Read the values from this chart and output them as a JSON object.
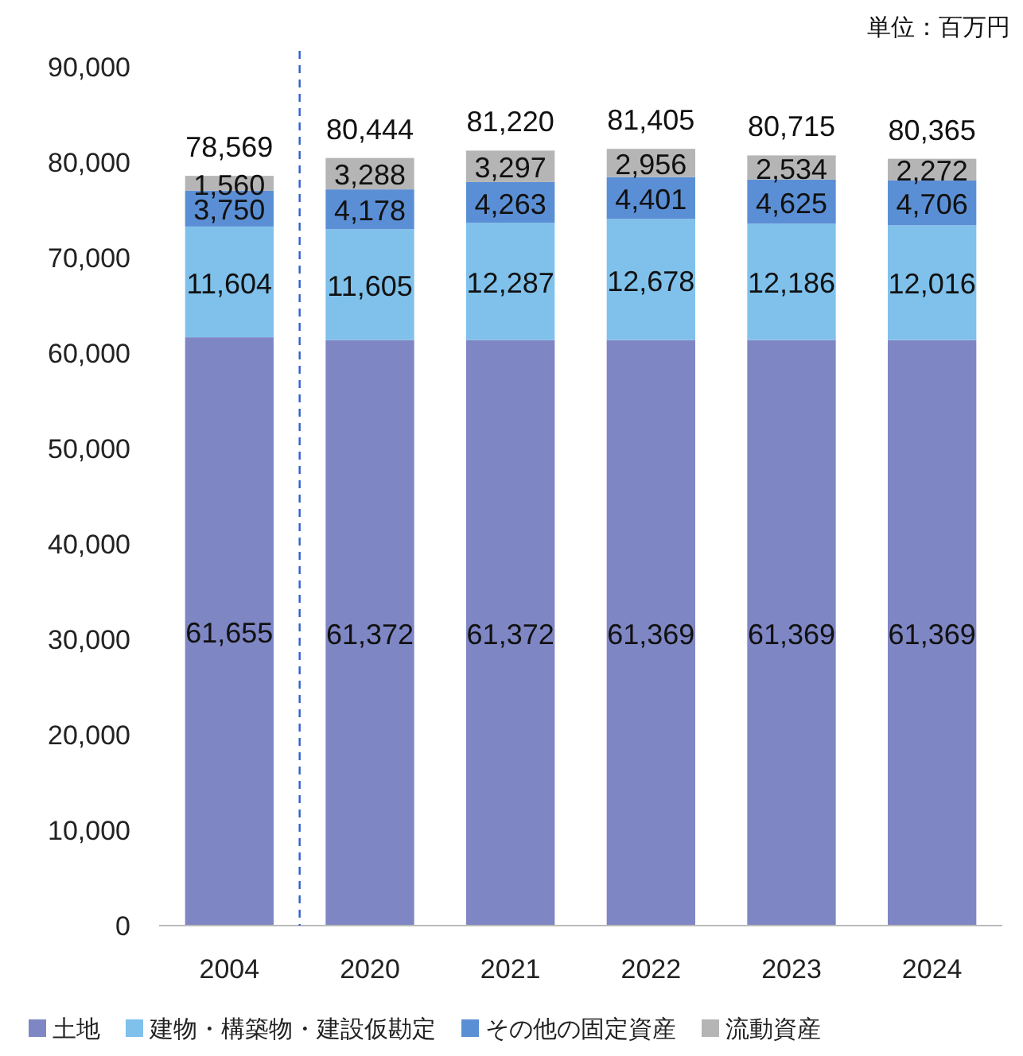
{
  "chart_data": {
    "type": "bar",
    "stacked": true,
    "categories": [
      "2004",
      "2020",
      "2021",
      "2022",
      "2023",
      "2024"
    ],
    "series": [
      {
        "name": "土地",
        "color": "#7f86c4",
        "values": [
          61655,
          61372,
          61372,
          61369,
          61369,
          61369
        ],
        "value_labels": [
          "61,655",
          "61,372",
          "61,372",
          "61,369",
          "61,369",
          "61,369"
        ]
      },
      {
        "name": "建物・構築物・建設仮勘定",
        "color": "#7fc1eb",
        "values": [
          11604,
          11605,
          12287,
          12678,
          12186,
          12016
        ],
        "value_labels": [
          "11,604",
          "11,605",
          "12,287",
          "12,678",
          "12,186",
          "12,016"
        ]
      },
      {
        "name": "その他の固定資産",
        "color": "#5b8fd5",
        "values": [
          3750,
          4178,
          4263,
          4401,
          4625,
          4706
        ],
        "value_labels": [
          "3,750",
          "4,178",
          "4,263",
          "4,401",
          "4,625",
          "4,706"
        ]
      },
      {
        "name": "流動資産",
        "color": "#b5b5b5",
        "values": [
          1560,
          3288,
          3297,
          2956,
          2534,
          2272
        ],
        "value_labels": [
          "1,560",
          "3,288",
          "3,297",
          "2,956",
          "2,534",
          "2,272"
        ]
      }
    ],
    "totals": [
      "78,569",
      "80,444",
      "81,220",
      "81,405",
      "80,715",
      "80,365"
    ],
    "ylim": [
      0,
      90000
    ],
    "yticks": [
      {
        "value": 0,
        "label": "0"
      },
      {
        "value": 10000,
        "label": "10,000"
      },
      {
        "value": 20000,
        "label": "20,000"
      },
      {
        "value": 30000,
        "label": "30,000"
      },
      {
        "value": 40000,
        "label": "40,000"
      },
      {
        "value": 50000,
        "label": "50,000"
      },
      {
        "value": 60000,
        "label": "60,000"
      },
      {
        "value": 70000,
        "label": "70,000"
      },
      {
        "value": 80000,
        "label": "80,000"
      },
      {
        "value": 90000,
        "label": "90,000"
      }
    ],
    "ref_lines": [
      {
        "axis": "x",
        "value": "2020",
        "color": "#2f5fd0",
        "line_style": "dashed"
      }
    ],
    "annotations": [
      "単位：百万円"
    ],
    "legend": "bottom",
    "grid": false
  }
}
